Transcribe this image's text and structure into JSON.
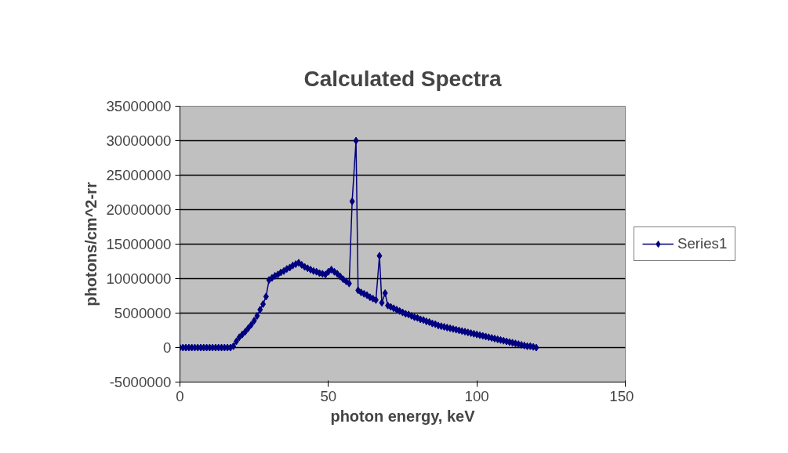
{
  "chart_data": {
    "type": "line",
    "title": "Calculated Spectra",
    "xlabel": "photon energy, keV",
    "ylabel": "photons/cm^2-rr",
    "x": [
      0,
      1,
      2,
      3,
      4,
      5,
      6,
      7,
      8,
      9,
      10,
      11,
      12,
      13,
      14,
      15,
      16,
      17,
      18,
      19,
      20,
      21,
      22,
      23,
      24,
      25,
      26,
      27,
      28,
      29,
      30,
      31,
      32,
      33,
      34,
      35,
      36,
      37,
      38,
      39,
      40,
      41,
      42,
      43,
      44,
      45,
      46,
      47,
      48,
      49,
      50,
      51,
      52,
      53,
      54,
      55,
      56,
      57,
      58,
      59.3,
      60,
      61,
      62,
      63,
      64,
      65,
      66,
      67.2,
      68,
      69.1,
      70,
      71,
      72,
      73,
      74,
      75,
      76,
      77,
      78,
      79,
      80,
      81,
      82,
      83,
      84,
      85,
      86,
      87,
      88,
      89,
      90,
      91,
      92,
      93,
      94,
      95,
      96,
      97,
      98,
      99,
      100,
      101,
      102,
      103,
      104,
      105,
      106,
      107,
      108,
      109,
      110,
      111,
      112,
      113,
      114,
      115,
      116,
      117,
      118,
      119,
      120
    ],
    "series": [
      {
        "name": "Series1",
        "color": "#000080",
        "values": [
          0,
          0,
          0,
          0,
          0,
          0,
          0,
          0,
          0,
          0,
          0,
          0,
          0,
          0,
          0,
          0,
          0,
          0,
          200000,
          900000,
          1500000,
          1900000,
          2300000,
          2800000,
          3300000,
          3900000,
          4600000,
          5500000,
          6300000,
          7400000,
          9800000,
          10100000,
          10400000,
          10600000,
          10900000,
          11100000,
          11400000,
          11600000,
          11900000,
          12100000,
          12300000,
          12000000,
          11700000,
          11500000,
          11300000,
          11100000,
          11000000,
          10800000,
          10700000,
          10600000,
          11000000,
          11300000,
          11000000,
          10700000,
          10300000,
          9900000,
          9600000,
          9300000,
          21200000,
          30000000,
          8300000,
          8000000,
          7800000,
          7600000,
          7300000,
          7100000,
          6900000,
          13300000,
          6500000,
          7900000,
          6100000,
          5900000,
          5700000,
          5500000,
          5300000,
          5100000,
          4900000,
          4800000,
          4600000,
          4400000,
          4300000,
          4100000,
          4000000,
          3800000,
          3700000,
          3500000,
          3400000,
          3200000,
          3100000,
          3000000,
          2900000,
          2800000,
          2700000,
          2600000,
          2500000,
          2400000,
          2300000,
          2200000,
          2100000,
          2000000,
          1900000,
          1800000,
          1700000,
          1600000,
          1500000,
          1400000,
          1300000,
          1200000,
          1100000,
          1000000,
          900000,
          800000,
          700000,
          600000,
          500000,
          400000,
          300000,
          200000,
          200000,
          100000,
          0
        ]
      }
    ],
    "xlim": [
      0,
      150
    ],
    "xticks": [
      0,
      50,
      100,
      150
    ],
    "ylim": [
      -5000000,
      35000000
    ],
    "yticks": [
      -5000000,
      0,
      5000000,
      10000000,
      15000000,
      20000000,
      25000000,
      30000000,
      35000000
    ],
    "grid": "y",
    "legend": "right",
    "marker": "diamond",
    "line_style": "solid"
  }
}
